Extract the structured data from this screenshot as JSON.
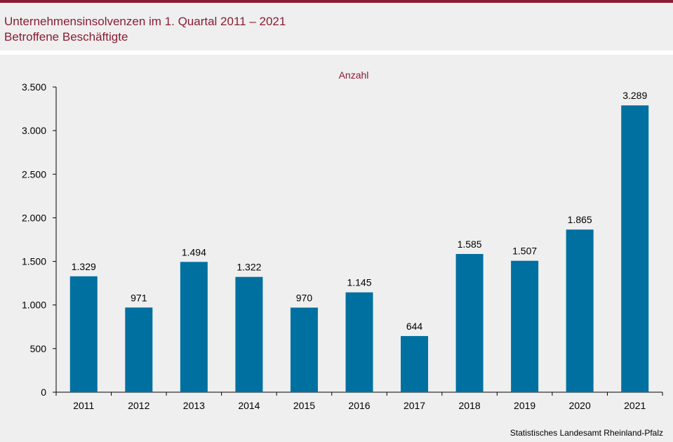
{
  "header": {
    "title": "Unternehmensinsolvenzen im 1. Quartal 2011 – 2021",
    "subtitle": "Betroffene Beschäftigte"
  },
  "source": "Statistisches Landesamt  Rheinland-Pfalz",
  "colors": {
    "brand": "#8a1c33",
    "bar": "#0070a0"
  },
  "chart_data": {
    "type": "bar",
    "title": "Unternehmensinsolvenzen im 1. Quartal 2011 – 2021",
    "subtitle": "Betroffene Beschäftigte",
    "unit_label": "Anzahl",
    "categories": [
      "2011",
      "2012",
      "2013",
      "2014",
      "2015",
      "2016",
      "2017",
      "2018",
      "2019",
      "2020",
      "2021"
    ],
    "values": [
      1329,
      971,
      1494,
      1322,
      970,
      1145,
      644,
      1585,
      1507,
      1865,
      3289
    ],
    "value_labels": [
      "1.329",
      "971",
      "1.494",
      "1.322",
      "970",
      "1.145",
      "644",
      "1.585",
      "1.507",
      "1.865",
      "3.289"
    ],
    "yticks": [
      0,
      500,
      1000,
      1500,
      2000,
      2500,
      3000,
      3500
    ],
    "ytick_labels": [
      "0",
      "500",
      "1.000",
      "1.500",
      "2.000",
      "2.500",
      "3.000",
      "3.500"
    ],
    "ylim": [
      0,
      3500
    ],
    "grid": false,
    "legend": "none"
  }
}
